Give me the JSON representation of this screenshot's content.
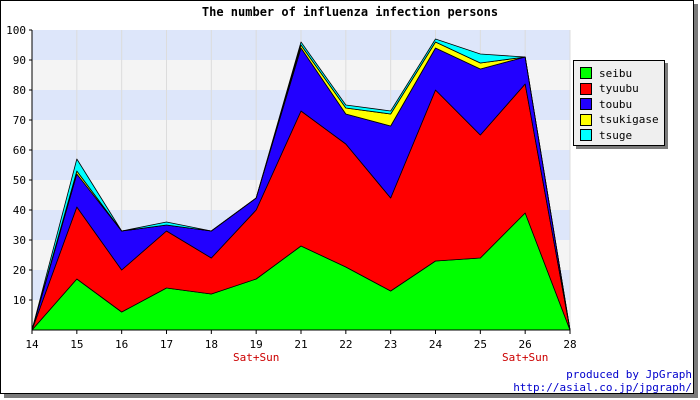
{
  "chart_data": {
    "type": "area",
    "stacked": true,
    "title": "The number of influenza infection persons",
    "x": [
      "14",
      "15",
      "16",
      "17",
      "18",
      "19",
      "21",
      "22",
      "23",
      "24",
      "25",
      "26",
      "28"
    ],
    "x_annotations": [
      {
        "x": "19",
        "label": "Sat+Sun"
      },
      {
        "x": "26",
        "label": "Sat+Sun"
      }
    ],
    "ylim": [
      0,
      100
    ],
    "yticks": [
      10,
      20,
      30,
      40,
      50,
      60,
      70,
      80,
      90,
      100
    ],
    "grid": "horizontal alternating bands",
    "legend_position": "right",
    "series": [
      {
        "name": "seibu",
        "color": "#00ff00",
        "values": [
          0,
          17,
          6,
          14,
          12,
          17,
          28,
          21,
          13,
          23,
          24,
          39,
          0
        ]
      },
      {
        "name": "tyuubu",
        "color": "#ff0000",
        "values": [
          0,
          24,
          14,
          19,
          12,
          23,
          45,
          41,
          31,
          57,
          41,
          43,
          0
        ]
      },
      {
        "name": "toubu",
        "color": "#2200ff",
        "values": [
          0,
          11,
          13,
          2,
          9,
          4,
          21,
          10,
          24,
          14,
          22,
          9,
          0
        ]
      },
      {
        "name": "tsukigase",
        "color": "#ffff00",
        "values": [
          0,
          1,
          0,
          0,
          0,
          0,
          1,
          2,
          4,
          2,
          2,
          0,
          0
        ]
      },
      {
        "name": "tsuge",
        "color": "#00ffff",
        "values": [
          0,
          4,
          0,
          1,
          0,
          0,
          1,
          1,
          1,
          1,
          3,
          0,
          0
        ]
      }
    ]
  },
  "credits": {
    "line1": "produced by JpGraph",
    "line2": "http://asial.co.jp/jpgraph/"
  }
}
